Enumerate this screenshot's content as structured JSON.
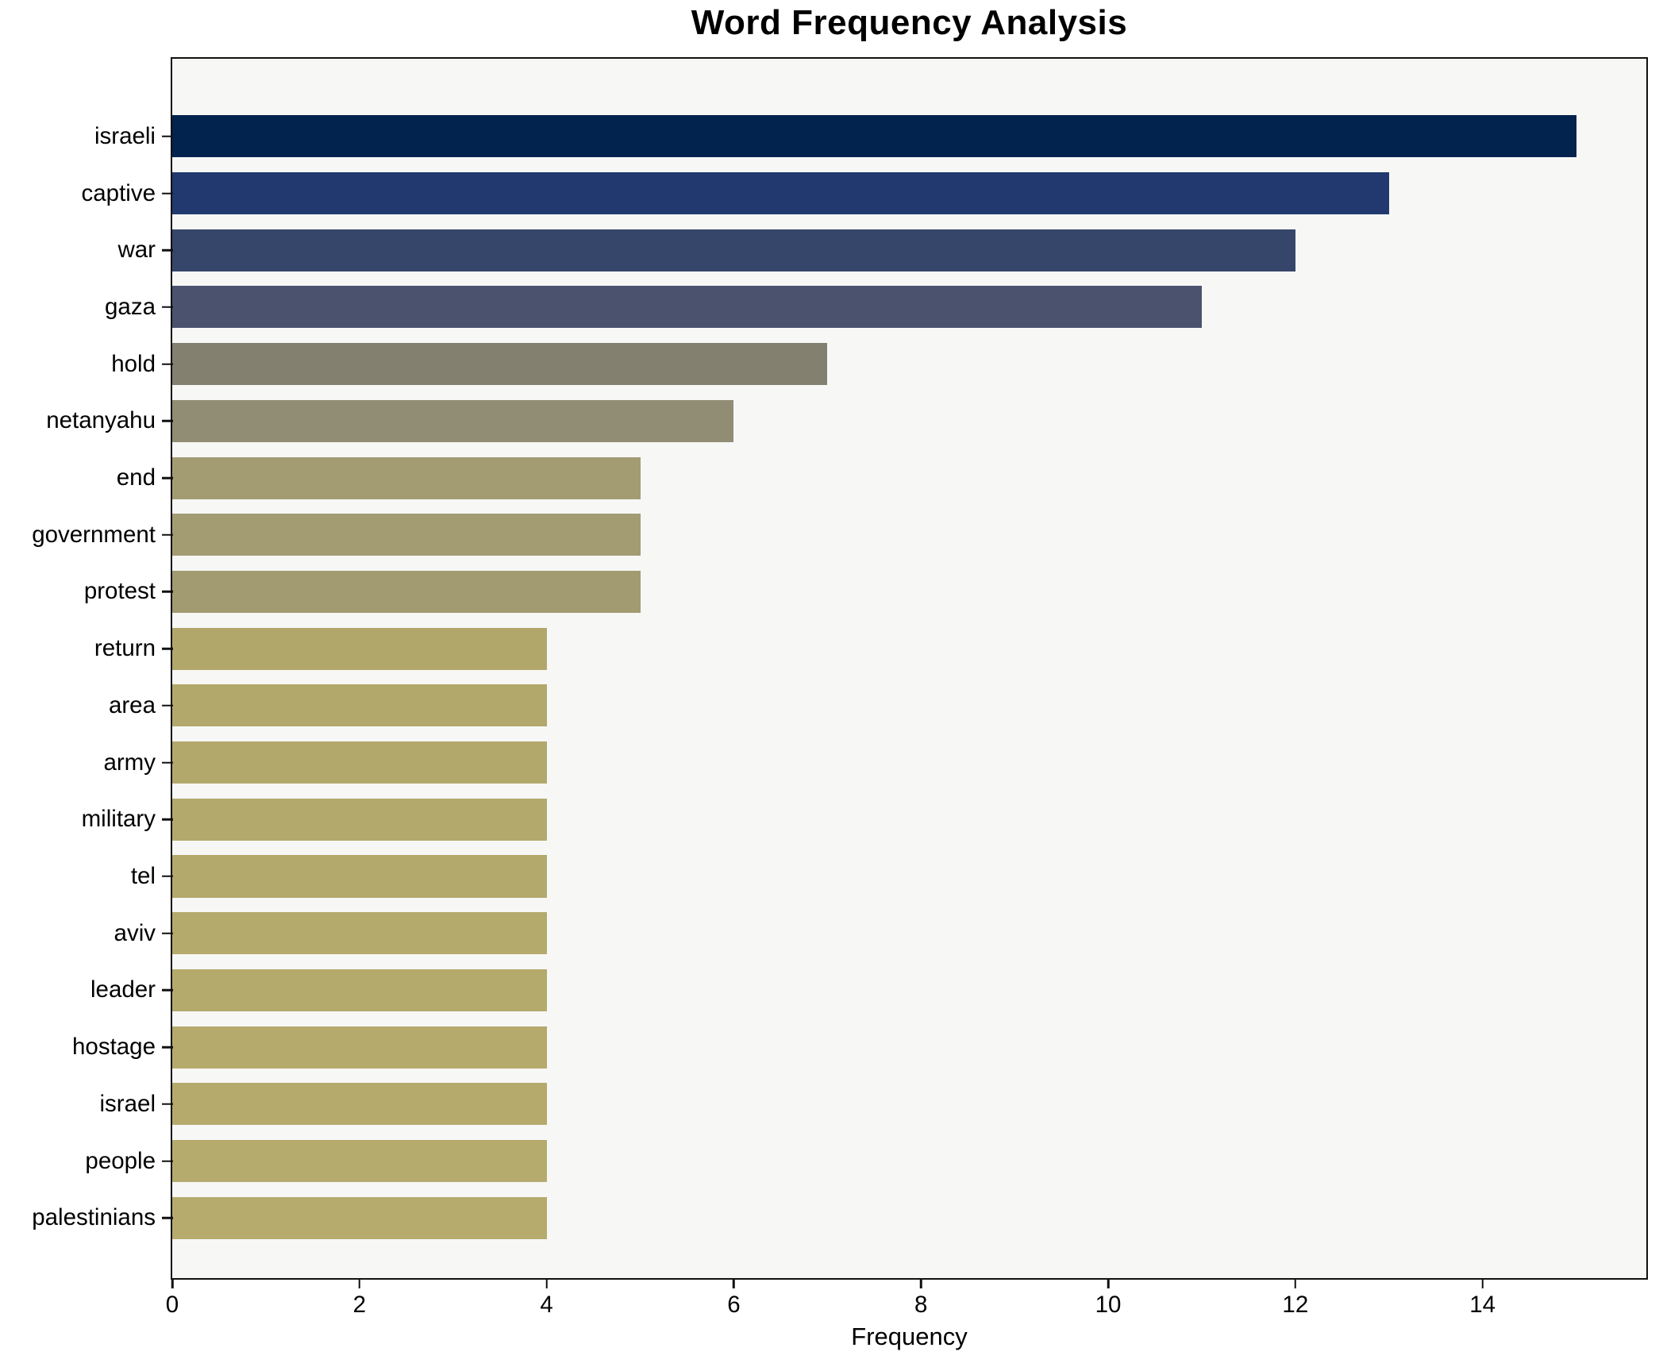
{
  "chart_data": {
    "type": "bar",
    "orientation": "horizontal",
    "title": "Word Frequency Analysis",
    "xlabel": "Frequency",
    "ylabel": "",
    "xlim": [
      0,
      15.75
    ],
    "xticks": [
      0,
      2,
      4,
      6,
      8,
      10,
      12,
      14
    ],
    "grid": false,
    "legend": null,
    "plot_background": "#f7f7f6",
    "spine_color": "#111111",
    "categories": [
      "israeli",
      "captive",
      "war",
      "gaza",
      "hold",
      "netanyahu",
      "end",
      "government",
      "protest",
      "return",
      "area",
      "army",
      "military",
      "tel",
      "aviv",
      "leader",
      "hostage",
      "israel",
      "people",
      "palestinians"
    ],
    "values": [
      15,
      13,
      12,
      11,
      7,
      6,
      5,
      5,
      5,
      4,
      4,
      4,
      4,
      4,
      4,
      4,
      4,
      4,
      4,
      4
    ],
    "bar_colors": [
      "#01234e",
      "#21396e",
      "#36456a",
      "#4a526d",
      "#838070",
      "#918c74",
      "#a39c73",
      "#a39c73",
      "#a29b72",
      "#b1a76b",
      "#b2a86b",
      "#b2a86b",
      "#b3a96c",
      "#b3a96c",
      "#b4aa6c",
      "#b4aa6c",
      "#b5aa6c",
      "#b5aa6c",
      "#b5ab6d",
      "#b6ab6d"
    ]
  }
}
